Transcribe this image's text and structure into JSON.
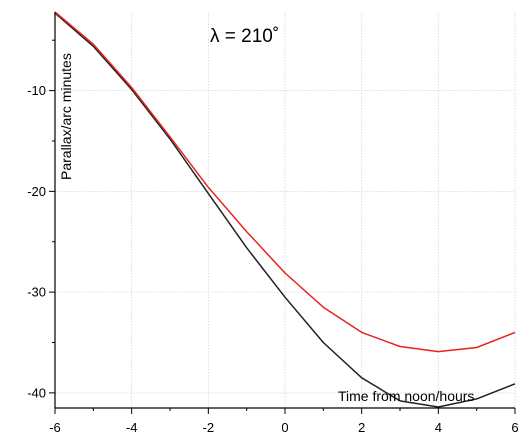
{
  "chart_data": {
    "type": "line",
    "title": "λ = 210˚",
    "xlabel": "Time from noon/hours",
    "ylabel": "Parallax/arc minutes",
    "xlim": [
      -6,
      6
    ],
    "ylim": [
      -41.5,
      -2.2
    ],
    "x_ticks": [
      -6,
      -4,
      -2,
      0,
      2,
      4,
      6
    ],
    "y_ticks": [
      -10,
      -20,
      -30,
      -40
    ],
    "grid": true,
    "series": [
      {
        "color": "#222222",
        "x": [
          -6,
          -5,
          -4,
          -3,
          -2,
          -1,
          0,
          1,
          2,
          3,
          4,
          5,
          6
        ],
        "y": [
          -2.3,
          -5.6,
          -9.9,
          -14.8,
          -20.2,
          -25.6,
          -30.5,
          -35.0,
          -38.5,
          -40.8,
          -41.4,
          -40.6,
          -39.1
        ]
      },
      {
        "color": "#e8231f",
        "x": [
          -6,
          -5,
          -4,
          -3,
          -2,
          -1,
          0,
          1,
          2,
          3,
          4,
          5,
          6
        ],
        "y": [
          -2.2,
          -5.4,
          -9.7,
          -14.6,
          -19.6,
          -24.0,
          -28.1,
          -31.5,
          -34.0,
          -35.4,
          -35.9,
          -35.5,
          -34.0
        ]
      }
    ]
  }
}
